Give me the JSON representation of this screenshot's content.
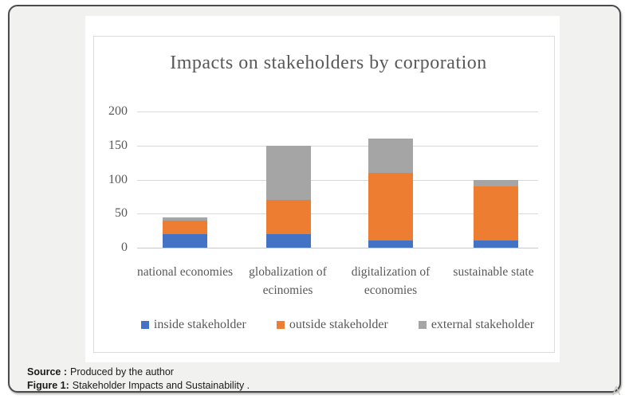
{
  "chart_data": {
    "type": "bar",
    "stacked": true,
    "title": "Impacts on stakeholders by corporation",
    "categories": [
      "national economies",
      "globalization of ecinomies",
      "digitalization of economies",
      "sustainable state"
    ],
    "series": [
      {
        "name": "inside stakeholder",
        "color": "#4472C4",
        "values": [
          20,
          20,
          10,
          10
        ]
      },
      {
        "name": "outside stakeholder",
        "color": "#ED7D31",
        "values": [
          20,
          50,
          100,
          80
        ]
      },
      {
        "name": "external stakeholder",
        "color": "#A5A5A5",
        "values": [
          5,
          80,
          50,
          10
        ]
      }
    ],
    "stack_totals": [
      45,
      150,
      160,
      100
    ],
    "xlabel": "",
    "ylabel": "",
    "ylim": [
      0,
      200
    ],
    "yticks": [
      0,
      50,
      100,
      150,
      200
    ],
    "grid": true,
    "legend_position": "bottom"
  },
  "caption": {
    "source_label": "Source :",
    "source_text": "Produced by the author",
    "figure_label": "Figure 1:",
    "figure_text": "Stakeholder Impacts and Sustainability ."
  },
  "watermark": {
    "glyph": "A"
  },
  "colors": {
    "card_background": "#f1f1f0",
    "card_border": "#4a4a4a",
    "panel_background": "#ffffff",
    "gridline": "#d9d9d9",
    "chart_text": "#595959",
    "caption_text": "#1a1a1a"
  }
}
